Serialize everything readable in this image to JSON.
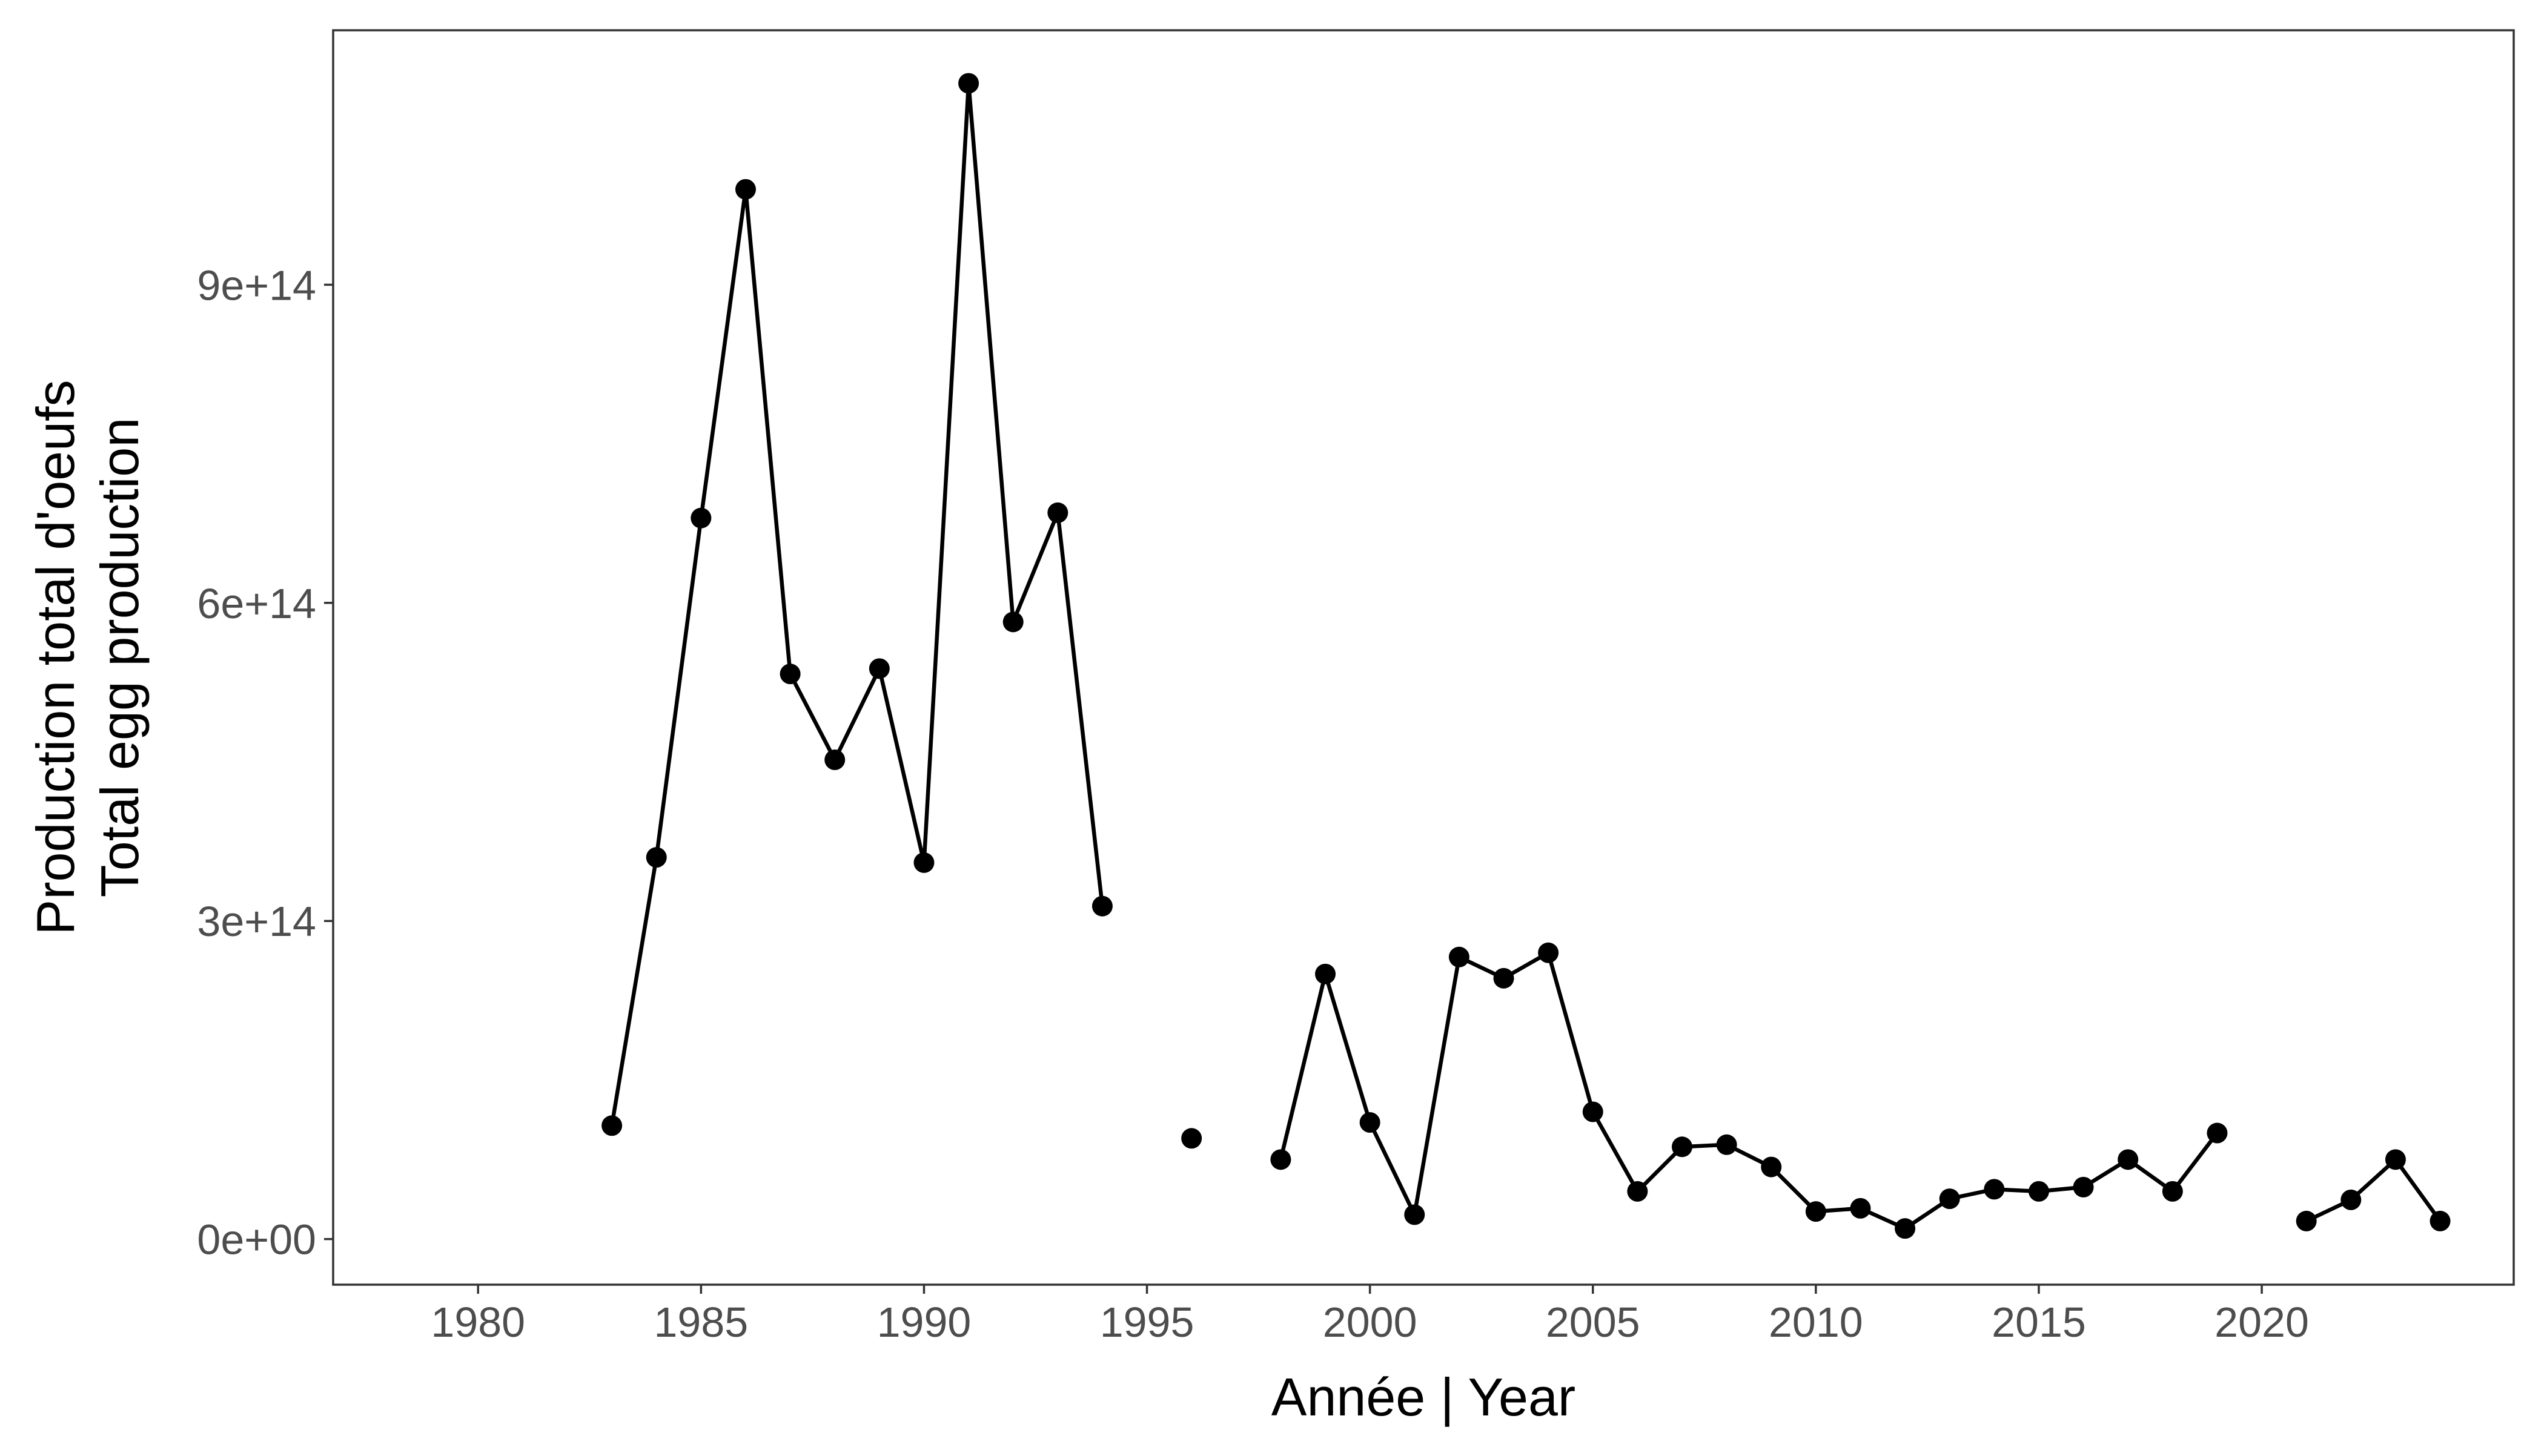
{
  "chart_data": {
    "type": "line",
    "title": "",
    "xlabel": "Année | Year",
    "ylabel": [
      "Production total d'oeufs",
      "Total egg production"
    ],
    "x_ticks": [
      "1980",
      "1985",
      "1990",
      "1995",
      "2000",
      "2005",
      "2010",
      "2015",
      "2020"
    ],
    "x_tick_values": [
      1980,
      1985,
      1990,
      1995,
      2000,
      2005,
      2010,
      2015,
      2020
    ],
    "y_ticks": [
      "0e+00",
      "3e+14",
      "6e+14",
      "9e+14"
    ],
    "y_tick_values": [
      0,
      300000000000000.0,
      600000000000000.0,
      900000000000000.0
    ],
    "xlim": [
      1976.75,
      2025.65
    ],
    "ylim": [
      -43000000000000.0,
      1140000000000000.0
    ],
    "grid": false,
    "legend": "none",
    "series": [
      {
        "x": [
          1983,
          1984,
          1985,
          1986,
          1987,
          1988,
          1989,
          1990,
          1991,
          1992,
          1993,
          1994,
          1995,
          1996,
          1997,
          1998,
          1999,
          2000,
          2001,
          2002,
          2003,
          2004,
          2005,
          2006,
          2007,
          2008,
          2009,
          2010,
          2011,
          2012,
          2013,
          2014,
          2015,
          2016,
          2017,
          2018,
          2019,
          2020,
          2021,
          2022,
          2023,
          2024
        ],
        "y": [
          107000000000000.0,
          360000000000000.0,
          680000000000000.0,
          990000000000000.0,
          533000000000000.0,
          452000000000000.0,
          538000000000000.0,
          355000000000000.0,
          1090000000000000.0,
          582000000000000.0,
          685000000000000.0,
          314000000000000.0,
          null,
          95000000000000.0,
          null,
          75000000000000.0,
          250000000000000.0,
          110000000000000.0,
          23000000000000.0,
          266000000000000.0,
          246000000000000.0,
          270000000000000.0,
          120000000000000.0,
          45000000000000.0,
          87000000000000.0,
          89000000000000.0,
          68000000000000.0,
          26000000000000.0,
          29000000000000.0,
          10000000000000.0,
          38000000000000.0,
          47000000000000.0,
          45000000000000.0,
          49000000000000.0,
          75000000000000.0,
          45000000000000.0,
          100000000000000.0,
          null,
          17000000000000.0,
          37000000000000.0,
          75000000000000.0,
          17000000000000.0
        ]
      }
    ],
    "colors": {
      "line": "#000000",
      "point": "#000000",
      "panel_border": "#333333",
      "tick_label": "#4d4d4d"
    }
  }
}
